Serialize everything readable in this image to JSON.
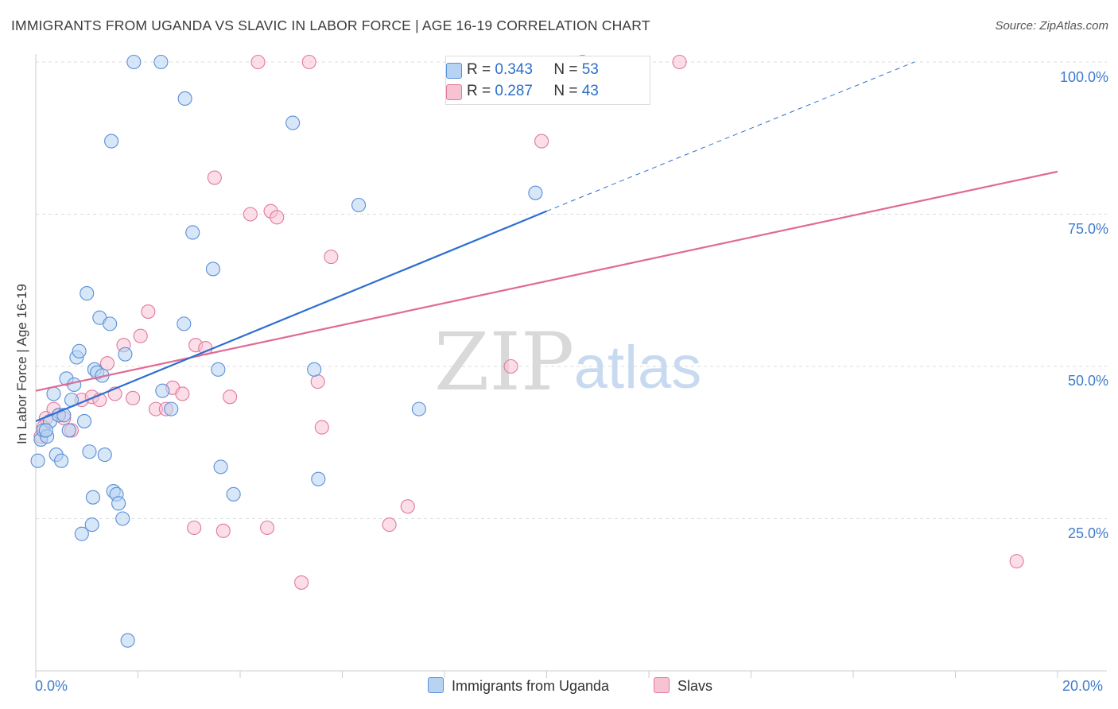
{
  "header": {
    "title": "IMMIGRANTS FROM UGANDA VS SLAVIC IN LABOR FORCE | AGE 16-19 CORRELATION CHART",
    "source": "Source: ZipAtlas.com"
  },
  "watermark": {
    "part1": "ZIP",
    "part2": "atlas"
  },
  "legend": {
    "r_label": "R =",
    "n_label": "N =",
    "uganda": {
      "r": "0.343",
      "n": "53",
      "name": "Immigrants from Uganda"
    },
    "slavs": {
      "r": "0.287",
      "n": "43",
      "name": "Slavs"
    }
  },
  "colors": {
    "uganda_fill": "#b7d3f2",
    "uganda_stroke": "#5a8fd8",
    "uganda_line": "#2e6fd0",
    "slavs_fill": "#f7c3d3",
    "slavs_stroke": "#e07a9e",
    "slavs_line": "#e06a94",
    "grid": "#dddddd",
    "axis_text": "#3f7ccc"
  },
  "chart_data": {
    "type": "scatter",
    "title": "IMMIGRANTS FROM UGANDA VS SLAVIC IN LABOR FORCE | AGE 16-19 CORRELATION CHART",
    "xlabel": "",
    "ylabel": "In Labor Force | Age 16-19",
    "xlim": [
      0,
      20
    ],
    "ylim": [
      0,
      105
    ],
    "x_tick_labels": [
      "0.0%",
      "20.0%"
    ],
    "y_ticks": [
      25,
      50,
      75,
      100
    ],
    "y_tick_labels": [
      "25.0%",
      "50.0%",
      "75.0%",
      "100.0%"
    ],
    "series": [
      {
        "name": "Immigrants from Uganda",
        "r": 0.343,
        "n": 53,
        "trend": {
          "x_start": 0,
          "y_start": 41.0,
          "x_solid_end": 10.0,
          "y_solid_end": 75.5,
          "x_dash_end": 17.2,
          "y_dash_end": 100.0
        },
        "points": [
          [
            0.04,
            34.5
          ],
          [
            0.1,
            38
          ],
          [
            0.15,
            39.5
          ],
          [
            0.22,
            38.5
          ],
          [
            0.28,
            41
          ],
          [
            0.35,
            45.5
          ],
          [
            0.4,
            35.5
          ],
          [
            0.45,
            42
          ],
          [
            0.5,
            34.5
          ],
          [
            0.6,
            48
          ],
          [
            0.65,
            39.5
          ],
          [
            0.7,
            44.5
          ],
          [
            0.75,
            47
          ],
          [
            0.8,
            51.5
          ],
          [
            0.85,
            52.5
          ],
          [
            0.9,
            22.5
          ],
          [
            0.95,
            41
          ],
          [
            1.0,
            62
          ],
          [
            1.05,
            36
          ],
          [
            1.1,
            24
          ],
          [
            1.12,
            28.5
          ],
          [
            1.15,
            49.5
          ],
          [
            1.2,
            49
          ],
          [
            1.25,
            58
          ],
          [
            1.3,
            48.5
          ],
          [
            1.35,
            35.5
          ],
          [
            1.45,
            57
          ],
          [
            1.48,
            87
          ],
          [
            1.52,
            29.5
          ],
          [
            1.58,
            29
          ],
          [
            1.62,
            27.5
          ],
          [
            1.7,
            25
          ],
          [
            1.75,
            52
          ],
          [
            1.8,
            5.0
          ],
          [
            1.92,
            100
          ],
          [
            2.45,
            100
          ],
          [
            2.48,
            46
          ],
          [
            2.65,
            43
          ],
          [
            2.9,
            57
          ],
          [
            2.92,
            94
          ],
          [
            3.07,
            72
          ],
          [
            3.47,
            66
          ],
          [
            3.57,
            49.5
          ],
          [
            3.62,
            33.5
          ],
          [
            3.87,
            29
          ],
          [
            5.03,
            90
          ],
          [
            5.45,
            49.5
          ],
          [
            5.53,
            31.5
          ],
          [
            6.32,
            76.5
          ],
          [
            7.5,
            43
          ],
          [
            9.78,
            78.5
          ],
          [
            0.2,
            39.5
          ],
          [
            0.55,
            42
          ]
        ]
      },
      {
        "name": "Slavs",
        "r": 0.287,
        "n": 43,
        "trend": {
          "x_start": 0,
          "y_start": 46.0,
          "x_end": 20,
          "y_end": 82.0
        },
        "points": [
          [
            0.1,
            38.5
          ],
          [
            0.2,
            41.5
          ],
          [
            0.35,
            43
          ],
          [
            0.45,
            42
          ],
          [
            0.55,
            41.5
          ],
          [
            0.7,
            39.5
          ],
          [
            0.9,
            44.5
          ],
          [
            1.1,
            45
          ],
          [
            1.25,
            44.5
          ],
          [
            1.4,
            50.5
          ],
          [
            1.55,
            45.5
          ],
          [
            1.72,
            53.5
          ],
          [
            1.9,
            44.8
          ],
          [
            2.05,
            55
          ],
          [
            2.2,
            59
          ],
          [
            2.35,
            43
          ],
          [
            2.55,
            43
          ],
          [
            2.68,
            46.5
          ],
          [
            2.87,
            45.5
          ],
          [
            3.1,
            23.5
          ],
          [
            3.13,
            53.5
          ],
          [
            3.32,
            53
          ],
          [
            3.5,
            81
          ],
          [
            3.67,
            23
          ],
          [
            3.8,
            45
          ],
          [
            4.2,
            75
          ],
          [
            4.35,
            100
          ],
          [
            4.53,
            23.5
          ],
          [
            4.6,
            75.5
          ],
          [
            4.72,
            74.5
          ],
          [
            5.2,
            14.5
          ],
          [
            5.35,
            100
          ],
          [
            5.52,
            47.5
          ],
          [
            5.6,
            40
          ],
          [
            5.78,
            68
          ],
          [
            6.92,
            24
          ],
          [
            7.28,
            27
          ],
          [
            9.3,
            50
          ],
          [
            9.9,
            87
          ],
          [
            10.7,
            100
          ],
          [
            12.6,
            100
          ],
          [
            19.2,
            18
          ],
          [
            0.15,
            40
          ]
        ]
      }
    ]
  }
}
